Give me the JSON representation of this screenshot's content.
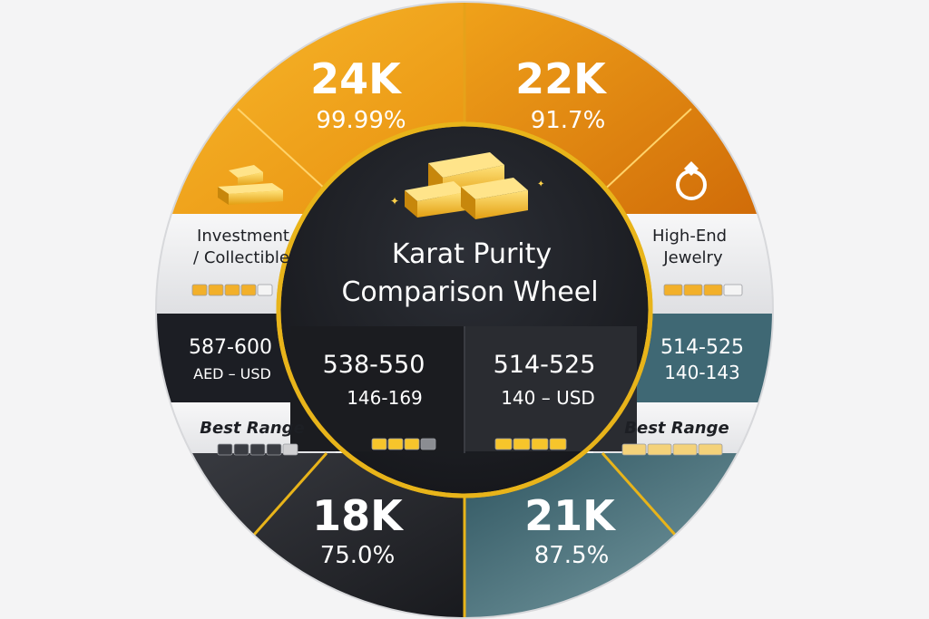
{
  "colors": {
    "gold": "#f0a21a",
    "deep_gold": "#d9730a",
    "charcoal": "#1c1e24",
    "teal": "#456f7a",
    "silver": "#e6e6e8",
    "ring": "#e8b41a"
  },
  "center": {
    "title_line1": "Karat Purity",
    "title_line2": "Comparison Wheel",
    "icon": "gold-bars-icon"
  },
  "segments": {
    "k24": {
      "karat": "24K",
      "purity": "99.99%",
      "use_line1": "Investment",
      "use_line2": "/ Collectible",
      "price_range": "587-600",
      "price_unit": "AED – USD",
      "range_label": "Best Range",
      "icon": "gold-bar-icon",
      "level": 4,
      "level_max": 5
    },
    "k22": {
      "karat": "22K",
      "purity": "91.7%",
      "use_line1": "High-End",
      "use_line2": "Jewelry",
      "price_range": "514-525",
      "price_unit": "140-143",
      "range_label": "Best Range",
      "icon": "ring-icon",
      "level": 3,
      "level_max": 4
    },
    "k18": {
      "karat": "18K",
      "purity": "75.0%",
      "price_range": "538-550",
      "price_unit": "146-169",
      "level": 3,
      "level_max": 4
    },
    "k21": {
      "karat": "21K",
      "purity": "87.5%",
      "price_range": "514-525",
      "price_unit": "140 – USD",
      "level": 4,
      "level_max": 4
    }
  }
}
